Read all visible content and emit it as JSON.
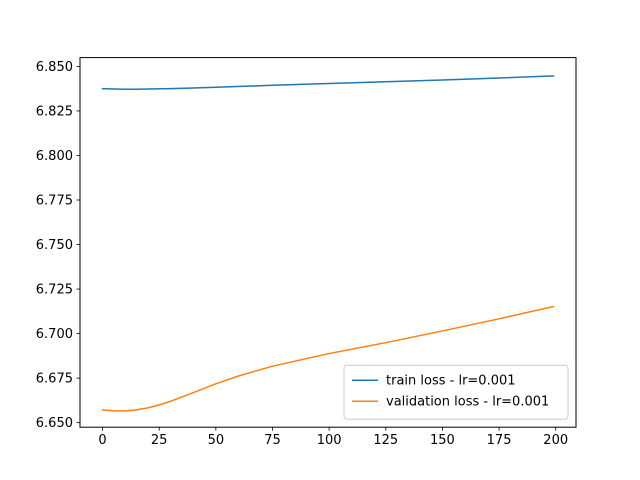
{
  "chart_data": {
    "type": "line",
    "title": "",
    "xlabel": "",
    "ylabel": "",
    "xlim": [
      -9.95,
      208.95
    ],
    "ylim": [
      6.64745,
      6.85495
    ],
    "x_ticks": [
      0,
      25,
      50,
      75,
      100,
      125,
      150,
      175,
      200
    ],
    "x_tick_labels": [
      "0",
      "25",
      "50",
      "75",
      "100",
      "125",
      "150",
      "175",
      "200"
    ],
    "y_ticks": [
      6.65,
      6.675,
      6.7,
      6.725,
      6.75,
      6.775,
      6.8,
      6.825,
      6.85
    ],
    "y_tick_labels": [
      "6.650",
      "6.675",
      "6.700",
      "6.725",
      "6.750",
      "6.775",
      "6.800",
      "6.825",
      "6.850"
    ],
    "grid": false,
    "legend_position": "lower-right",
    "series": [
      {
        "name": "train loss - lr=0.001",
        "color": "#1f77b4",
        "x": [
          0,
          5,
          10,
          15,
          20,
          30,
          40,
          50,
          75,
          100,
          125,
          150,
          175,
          199
        ],
        "y": [
          6.8375,
          6.8373,
          6.8372,
          6.8372,
          6.8373,
          6.8375,
          6.8379,
          6.8383,
          6.8394,
          6.8404,
          6.8414,
          6.8424,
          6.8435,
          6.8447
        ]
      },
      {
        "name": "validation loss - lr=0.001",
        "color": "#ff7f0e",
        "x": [
          0,
          5,
          10,
          15,
          20,
          25,
          30,
          40,
          50,
          60,
          75,
          100,
          125,
          150,
          175,
          199
        ],
        "y": [
          6.6572,
          6.6566,
          6.6566,
          6.6572,
          6.6583,
          6.6599,
          6.662,
          6.6668,
          6.6718,
          6.6762,
          6.6817,
          6.6888,
          6.6949,
          6.7015,
          6.7083,
          6.7152
        ]
      }
    ]
  }
}
